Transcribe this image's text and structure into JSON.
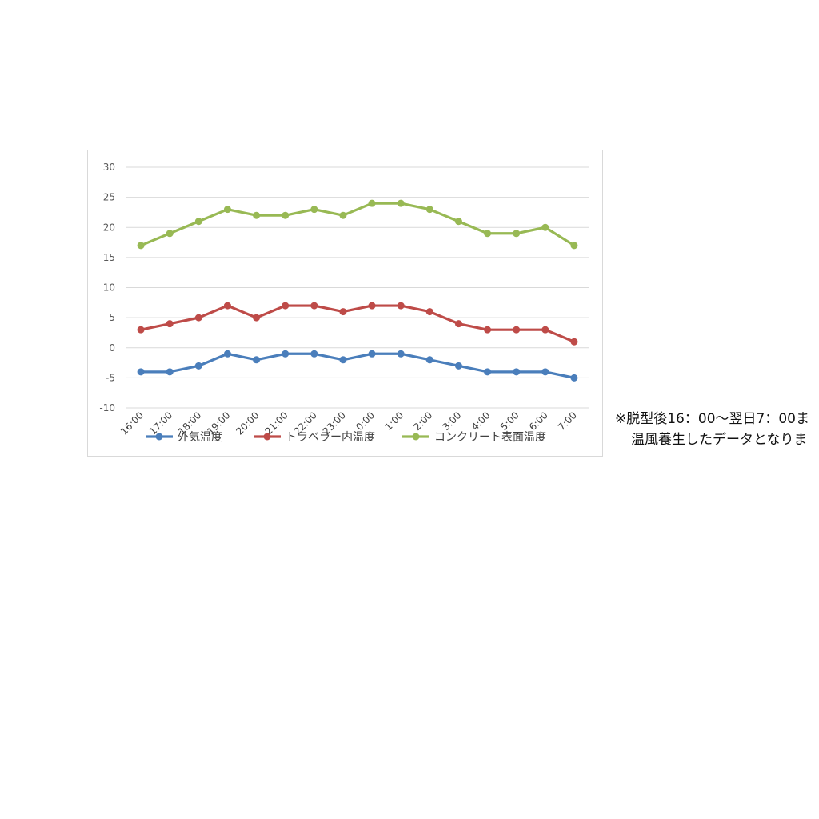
{
  "chart_data": {
    "type": "line",
    "categories": [
      "16:00",
      "17:00",
      "18:00",
      "19:00",
      "20:00",
      "21:00",
      "22:00",
      "23:00",
      "0:00",
      "1:00",
      "2:00",
      "3:00",
      "4:00",
      "5:00",
      "6:00",
      "7:00"
    ],
    "yticks": [
      "30",
      "25",
      "20",
      "15",
      "10",
      "5",
      "0",
      "-5",
      "-10"
    ],
    "ylim": [
      -10,
      30
    ],
    "grid": true,
    "legend_position": "bottom",
    "series": [
      {
        "name": "外気温度",
        "color": "#4a7ebb",
        "values": [
          -4,
          -4,
          -3,
          -1,
          -2,
          -1,
          -1,
          -2,
          -1,
          -1,
          -2,
          -3,
          -4,
          -4,
          -4,
          -5
        ]
      },
      {
        "name": "トラベラー内温度",
        "color": "#be4b48",
        "values": [
          3,
          4,
          5,
          7,
          5,
          7,
          7,
          6,
          7,
          7,
          6,
          4,
          3,
          3,
          3,
          1
        ]
      },
      {
        "name": "コンクリート表面温度",
        "color": "#98b954",
        "values": [
          17,
          19,
          21,
          23,
          22,
          22,
          23,
          22,
          24,
          24,
          23,
          21,
          19,
          19,
          20,
          17
        ]
      }
    ]
  },
  "note": {
    "line1": "※脱型後16：00〜翌日7：00ま",
    "line2": "温風養生したデータとなりま"
  }
}
